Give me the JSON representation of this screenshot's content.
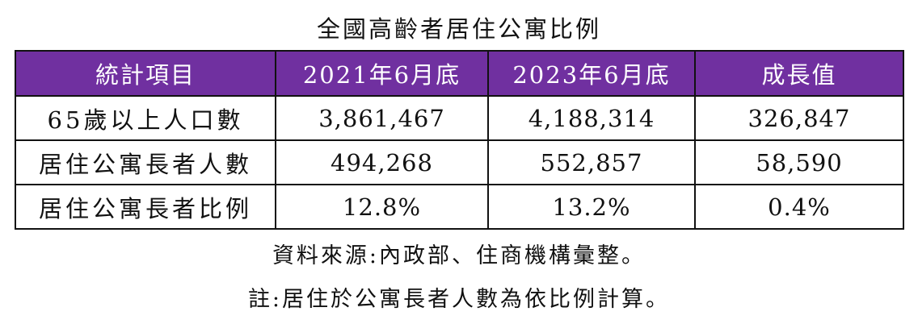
{
  "title": "全國高齡者居住公寓比例",
  "table": {
    "headers": [
      "統計項目",
      "2021年6月底",
      "2023年6月底",
      "成長值"
    ],
    "rows": [
      [
        "65歲以上人口數",
        "3,861,467",
        "4,188,314",
        "326,847"
      ],
      [
        "居住公寓長者人數",
        "494,268",
        "552,857",
        "58,590"
      ],
      [
        "居住公寓長者比例",
        "12.8%",
        "13.2%",
        "0.4%"
      ]
    ]
  },
  "source": "資料來源:內政部、住商機構彙整。",
  "footnote": "註:居住於公寓長者人數為依比例計算。",
  "colors": {
    "header_background": "#7030a0",
    "header_text": "#ffffff",
    "border": "#111111"
  }
}
